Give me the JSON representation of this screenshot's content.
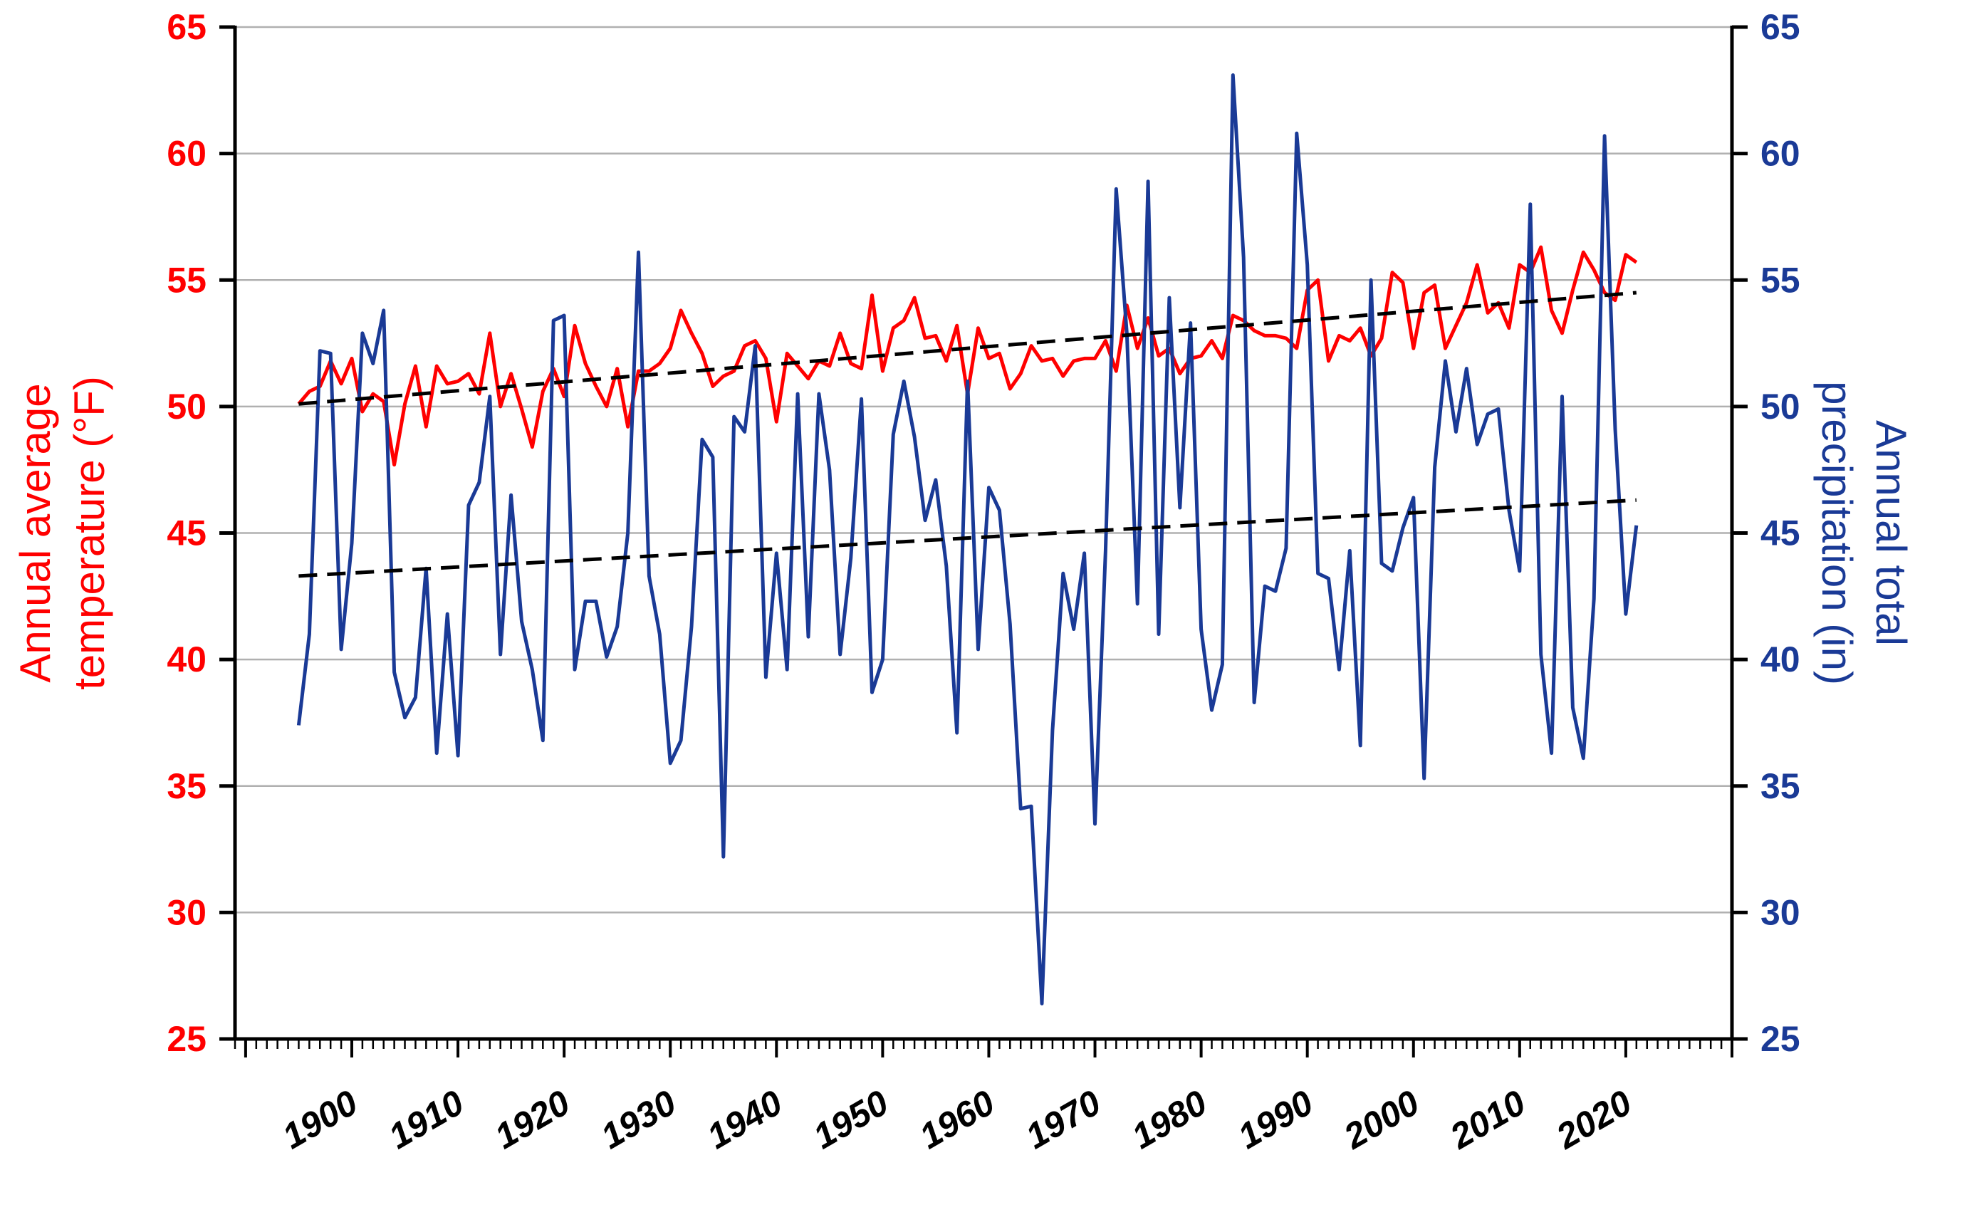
{
  "chart_data": {
    "type": "line",
    "title": "",
    "left_axis": {
      "label_lines": [
        "Annual average",
        "temperature (°F)"
      ],
      "ylim": [
        25,
        65
      ],
      "ticks": [
        "25",
        "30",
        "35",
        "40",
        "45",
        "50",
        "55",
        "60",
        "65"
      ],
      "color": "#ff0000"
    },
    "right_axis": {
      "label_lines": [
        "Annual total",
        "precipitation (in)"
      ],
      "ylim": [
        25,
        65
      ],
      "ticks": [
        "25",
        "30",
        "35",
        "40",
        "45",
        "50",
        "55",
        "60",
        "65"
      ],
      "color": "#1a3a96"
    },
    "x_axis": {
      "xlim": [
        1889,
        2030
      ],
      "ticks": [
        "1900",
        "1910",
        "1920",
        "1930",
        "1940",
        "1950",
        "1960",
        "1970",
        "1980",
        "1990",
        "2000",
        "2010",
        "2020"
      ]
    },
    "grid": true,
    "series": [
      {
        "name": "",
        "axis": "left",
        "color": "#ff0000",
        "x": [
          1895,
          1896,
          1897,
          1898,
          1899,
          1900,
          1901,
          1902,
          1903,
          1904,
          1905,
          1906,
          1907,
          1908,
          1909,
          1910,
          1911,
          1912,
          1913,
          1914,
          1915,
          1916,
          1917,
          1918,
          1919,
          1920,
          1921,
          1922,
          1923,
          1924,
          1925,
          1926,
          1927,
          1928,
          1929,
          1930,
          1931,
          1932,
          1933,
          1934,
          1935,
          1936,
          1937,
          1938,
          1939,
          1940,
          1941,
          1942,
          1943,
          1944,
          1945,
          1946,
          1947,
          1948,
          1949,
          1950,
          1951,
          1952,
          1953,
          1954,
          1955,
          1956,
          1957,
          1958,
          1959,
          1960,
          1961,
          1962,
          1963,
          1964,
          1965,
          1966,
          1967,
          1968,
          1969,
          1970,
          1971,
          1972,
          1973,
          1974,
          1975,
          1976,
          1977,
          1978,
          1979,
          1980,
          1981,
          1982,
          1983,
          1984,
          1985,
          1986,
          1987,
          1988,
          1989,
          1990,
          1991,
          1992,
          1993,
          1994,
          1995,
          1996,
          1997,
          1998,
          1999,
          2000,
          2001,
          2002,
          2003,
          2004,
          2005,
          2006,
          2007,
          2008,
          2009,
          2010,
          2011,
          2012,
          2013,
          2014,
          2015,
          2016,
          2017,
          2018,
          2019,
          2020,
          2021
        ],
        "values": [
          50.1,
          50.6,
          50.8,
          51.8,
          50.9,
          51.9,
          49.8,
          50.5,
          50.2,
          47.7,
          50.1,
          51.6,
          49.2,
          51.6,
          50.9,
          51.0,
          51.3,
          50.5,
          52.9,
          50.0,
          51.3,
          49.9,
          48.4,
          50.6,
          51.5,
          50.4,
          53.2,
          51.7,
          50.8,
          50.0,
          51.5,
          49.2,
          51.4,
          51.4,
          51.7,
          52.3,
          53.8,
          52.9,
          52.1,
          50.8,
          51.2,
          51.4,
          52.4,
          52.6,
          51.9,
          49.4,
          52.1,
          51.6,
          51.1,
          51.8,
          51.6,
          52.9,
          51.7,
          51.5,
          54.4,
          51.4,
          53.1,
          53.4,
          54.3,
          52.7,
          52.8,
          51.8,
          53.2,
          50.5,
          53.1,
          51.9,
          52.1,
          50.7,
          51.3,
          52.4,
          51.8,
          51.9,
          51.2,
          51.8,
          51.9,
          51.9,
          52.6,
          51.4,
          54.0,
          52.3,
          53.5,
          52.0,
          52.3,
          51.3,
          51.9,
          52.0,
          52.6,
          51.9,
          53.6,
          53.4,
          53.0,
          52.8,
          52.8,
          52.7,
          52.3,
          54.6,
          55.0,
          51.8,
          52.8,
          52.6,
          53.1,
          52.0,
          52.7,
          55.3,
          54.9,
          52.3,
          54.5,
          54.8,
          52.3,
          53.2,
          54.1,
          55.6,
          53.7,
          54.1,
          53.1,
          55.6,
          55.3,
          56.3,
          53.8,
          52.9,
          54.6,
          56.1,
          55.4,
          54.5,
          54.2,
          56.0,
          55.7
        ]
      },
      {
        "name": "",
        "axis": "right",
        "color": "#1a3a96",
        "x": [
          1895,
          1896,
          1897,
          1898,
          1899,
          1900,
          1901,
          1902,
          1903,
          1904,
          1905,
          1906,
          1907,
          1908,
          1909,
          1910,
          1911,
          1912,
          1913,
          1914,
          1915,
          1916,
          1917,
          1918,
          1919,
          1920,
          1921,
          1922,
          1923,
          1924,
          1925,
          1926,
          1927,
          1928,
          1929,
          1930,
          1931,
          1932,
          1933,
          1934,
          1935,
          1936,
          1937,
          1938,
          1939,
          1940,
          1941,
          1942,
          1943,
          1944,
          1945,
          1946,
          1947,
          1948,
          1949,
          1950,
          1951,
          1952,
          1953,
          1954,
          1955,
          1956,
          1957,
          1958,
          1959,
          1960,
          1961,
          1962,
          1963,
          1964,
          1965,
          1966,
          1967,
          1968,
          1969,
          1970,
          1971,
          1972,
          1973,
          1974,
          1975,
          1976,
          1977,
          1978,
          1979,
          1980,
          1981,
          1982,
          1983,
          1984,
          1985,
          1986,
          1987,
          1988,
          1989,
          1990,
          1991,
          1992,
          1993,
          1994,
          1995,
          1996,
          1997,
          1998,
          1999,
          2000,
          2001,
          2002,
          2003,
          2004,
          2005,
          2006,
          2007,
          2008,
          2009,
          2010,
          2011,
          2012,
          2013,
          2014,
          2015,
          2016,
          2017,
          2018,
          2019,
          2020,
          2021
        ],
        "values": [
          37.4,
          41.0,
          52.2,
          52.1,
          40.4,
          44.6,
          52.9,
          51.7,
          53.8,
          39.5,
          37.7,
          38.5,
          43.6,
          36.3,
          41.8,
          36.2,
          46.1,
          47.0,
          50.4,
          40.2,
          46.5,
          41.5,
          39.6,
          36.8,
          53.4,
          53.6,
          39.6,
          42.3,
          42.3,
          40.1,
          41.3,
          45.0,
          56.1,
          43.3,
          41.0,
          35.9,
          36.8,
          41.3,
          48.7,
          48.0,
          32.2,
          49.6,
          49.0,
          52.4,
          39.3,
          44.2,
          39.6,
          50.5,
          40.9,
          50.5,
          47.5,
          40.2,
          44.0,
          50.3,
          38.7,
          40.0,
          48.9,
          51.0,
          48.8,
          45.5,
          47.1,
          43.7,
          37.1,
          51.0,
          40.4,
          46.8,
          45.9,
          41.4,
          34.1,
          34.2,
          26.4,
          37.2,
          43.4,
          41.2,
          44.2,
          33.5,
          44.3,
          58.6,
          52.9,
          42.2,
          58.9,
          41.0,
          54.3,
          46.0,
          53.3,
          41.2,
          38.0,
          39.8,
          63.1,
          55.9,
          38.3,
          42.9,
          42.7,
          44.4,
          60.8,
          55.6,
          43.4,
          43.2,
          39.6,
          44.3,
          36.6,
          55.0,
          43.8,
          43.5,
          45.2,
          46.4,
          35.3,
          47.6,
          51.8,
          49.0,
          51.5,
          48.5,
          49.7,
          49.9,
          45.9,
          43.5,
          58.0,
          40.2,
          36.3,
          50.4,
          38.1,
          36.1,
          42.4,
          60.7,
          49.1,
          41.8,
          45.3
        ]
      },
      {
        "name": "",
        "axis": "left",
        "color": "#000000",
        "dashed": true,
        "x": [
          1895,
          2021
        ],
        "values": [
          50.1,
          54.5
        ]
      },
      {
        "name": "",
        "axis": "right",
        "color": "#000000",
        "dashed": true,
        "x": [
          1895,
          2021
        ],
        "values": [
          43.3,
          46.3
        ]
      }
    ]
  }
}
